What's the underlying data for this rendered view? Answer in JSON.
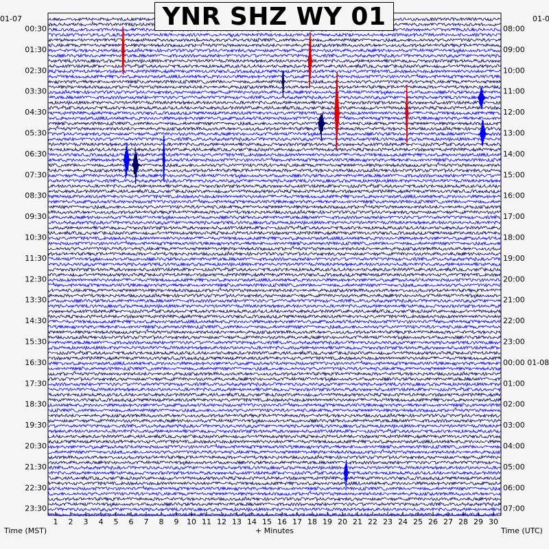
{
  "title": "YNR SHZ WY 01",
  "chart_data": {
    "type": "helicorder",
    "title": "YNR SHZ WY 01",
    "xlabel": "+ Minutes",
    "left_axis_label": "Time (MST)",
    "right_axis_label": "Time (UTC)",
    "left_date": "01-07",
    "right_date": "01-0",
    "right_date_change": "01-08",
    "x_ticks": [
      1,
      2,
      3,
      4,
      5,
      6,
      7,
      8,
      9,
      10,
      11,
      12,
      13,
      14,
      15,
      16,
      17,
      18,
      19,
      20,
      21,
      22,
      23,
      24,
      25,
      26,
      27,
      28,
      29,
      30
    ],
    "xlim": [
      0,
      30
    ],
    "traces_per_hour": 4,
    "left_hour_labels": [
      "00:30",
      "01:30",
      "02:30",
      "03:30",
      "04:30",
      "05:30",
      "06:30",
      "07:30",
      "08:30",
      "09:30",
      "10:30",
      "11:30",
      "12:30",
      "13:30",
      "14:30",
      "15:30",
      "16:30",
      "17:30",
      "18:30",
      "19:30",
      "20:30",
      "21:30",
      "22:30",
      "23:30"
    ],
    "right_hour_labels": [
      "08:00",
      "09:00",
      "10:00",
      "11:00",
      "12:00",
      "13:00",
      "14:00",
      "15:00",
      "16:00",
      "17:00",
      "18:00",
      "19:00",
      "20:00",
      "21:00",
      "22:00",
      "23:00",
      "00:00 01-08",
      "01:00",
      "02:00",
      "03:00",
      "04:00",
      "05:00",
      "06:00",
      "07:00"
    ],
    "trace_colors": [
      "#000066",
      "#0000ff"
    ],
    "event_color": "#dd0000",
    "events": [
      {
        "minute": 5.0,
        "trace": 6,
        "color": "red",
        "amp": 1.6,
        "dur": 0.1
      },
      {
        "minute": 17.4,
        "trace": 8,
        "color": "red",
        "amp": 1.6,
        "dur": 0.15
      },
      {
        "minute": 19.2,
        "trace": 18,
        "color": "red",
        "amp": 2.3,
        "dur": 0.2
      },
      {
        "minute": 23.8,
        "trace": 18,
        "color": "red",
        "amp": 1.5,
        "dur": 0.1
      },
      {
        "minute": 18.2,
        "trace": 20,
        "color": "trace",
        "amp": 0.9,
        "dur": 0.3
      },
      {
        "minute": 28.8,
        "trace": 15,
        "color": "trace",
        "amp": 0.7,
        "dur": 0.3
      },
      {
        "minute": 28.9,
        "trace": 22,
        "color": "trace",
        "amp": 0.8,
        "dur": 0.3
      },
      {
        "minute": 15.6,
        "trace": 12,
        "color": "trace",
        "amp": 0.8,
        "dur": 0.1
      },
      {
        "minute": 5.3,
        "trace": 27,
        "color": "trace",
        "amp": 1.1,
        "dur": 0.3
      },
      {
        "minute": 5.9,
        "trace": 28,
        "color": "trace",
        "amp": 1.0,
        "dur": 0.3
      },
      {
        "minute": 7.7,
        "trace": 27,
        "color": "trace",
        "amp": 1.3,
        "dur": 0.1
      },
      {
        "minute": 19.8,
        "trace": 87,
        "color": "trace",
        "amp": 0.8,
        "dur": 0.2
      }
    ]
  }
}
